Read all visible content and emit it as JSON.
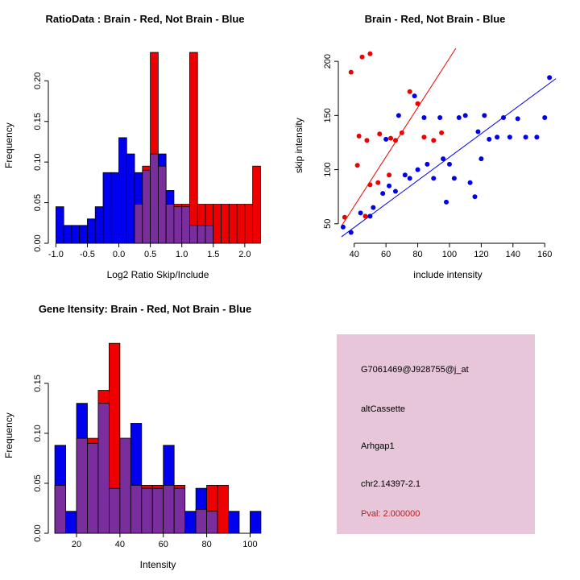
{
  "colors": {
    "red": "#EE0000",
    "blue": "#0000EE",
    "overlap": "#7A2E9D",
    "axis": "#000000",
    "info_bg": "#E6C6D8",
    "pval_text": "#B22222"
  },
  "chart_data": [
    {
      "type": "bar",
      "id": "ratio-histogram",
      "title": "RatioData : Brain - Red, Not Brain - Blue",
      "xlabel": "Log2 Ratio Skip/Include",
      "ylabel": "Frequency",
      "xlim": [
        -1.12,
        2.36
      ],
      "ylim": [
        0,
        0.24
      ],
      "xticks": [
        -1.0,
        -0.5,
        0.0,
        0.5,
        1.0,
        1.5,
        2.0
      ],
      "xtick_labels": [
        "-1.0",
        "-0.5",
        "0.0",
        "0.5",
        "1.0",
        "1.5",
        "2.0"
      ],
      "yticks": [
        0,
        0.05,
        0.1,
        0.15,
        0.2
      ],
      "ytick_labels": [
        "0.00",
        "0.05",
        "0.10",
        "0.15",
        "0.20"
      ],
      "bins_start": -1.0,
      "bin_width": 0.125,
      "series": [
        {
          "name": "Not Brain",
          "color": "blue",
          "values": [
            0.045,
            0.022,
            0.022,
            0.022,
            0.03,
            0.045,
            0.087,
            0.087,
            0.13,
            0.11,
            0.087,
            0.09,
            0.11,
            0.11,
            0.065,
            0.045,
            0.045,
            0.022,
            0.022,
            0.022,
            0,
            0,
            0,
            0,
            0,
            0
          ]
        },
        {
          "name": "Brain",
          "color": "red",
          "values": [
            0,
            0,
            0,
            0,
            0,
            0,
            0,
            0,
            0,
            0,
            0.048,
            0.095,
            0.235,
            0.095,
            0.048,
            0.048,
            0.048,
            0.235,
            0.048,
            0.048,
            0.048,
            0.048,
            0.048,
            0.048,
            0.048,
            0.095
          ]
        }
      ]
    },
    {
      "type": "scatter",
      "id": "intensity-scatter",
      "title": "Brain - Red, Not Brain - Blue",
      "xlabel": "include intensity",
      "ylabel": "skip intensity",
      "xlim": [
        30,
        168
      ],
      "ylim": [
        32,
        212
      ],
      "xticks": [
        40,
        60,
        80,
        100,
        120,
        140,
        160
      ],
      "xtick_labels": [
        "40",
        "60",
        "80",
        "100",
        "120",
        "140",
        "160"
      ],
      "yticks": [
        50,
        100,
        150,
        200
      ],
      "ytick_labels": [
        "50",
        "100",
        "150",
        "200"
      ],
      "series": [
        {
          "name": "Brain",
          "color": "red",
          "points": [
            [
              38,
              190
            ],
            [
              45,
              204
            ],
            [
              50,
              207
            ],
            [
              43,
              131
            ],
            [
              48,
              127
            ],
            [
              56,
              133
            ],
            [
              63,
              129
            ],
            [
              66,
              127
            ],
            [
              70,
              134
            ],
            [
              75,
              172
            ],
            [
              80,
              161
            ],
            [
              84,
              130
            ],
            [
              90,
              127
            ],
            [
              95,
              134
            ],
            [
              42,
              104
            ],
            [
              50,
              86
            ],
            [
              55,
              88
            ],
            [
              62,
              95
            ],
            [
              34,
              56
            ],
            [
              47,
              57
            ]
          ]
        },
        {
          "name": "Not Brain",
          "color": "blue",
          "points": [
            [
              33,
              47
            ],
            [
              38,
              42
            ],
            [
              44,
              60
            ],
            [
              50,
              57
            ],
            [
              52,
              65
            ],
            [
              58,
              78
            ],
            [
              60,
              128
            ],
            [
              62,
              85
            ],
            [
              66,
              80
            ],
            [
              68,
              150
            ],
            [
              72,
              95
            ],
            [
              75,
              92
            ],
            [
              78,
              168
            ],
            [
              80,
              100
            ],
            [
              84,
              148
            ],
            [
              86,
              105
            ],
            [
              90,
              92
            ],
            [
              94,
              148
            ],
            [
              96,
              110
            ],
            [
              100,
              105
            ],
            [
              103,
              92
            ],
            [
              106,
              148
            ],
            [
              110,
              150
            ],
            [
              113,
              88
            ],
            [
              116,
              75
            ],
            [
              118,
              135
            ],
            [
              122,
              150
            ],
            [
              125,
              128
            ],
            [
              130,
              130
            ],
            [
              134,
              148
            ],
            [
              138,
              130
            ],
            [
              143,
              147
            ],
            [
              148,
              130
            ],
            [
              155,
              130
            ],
            [
              160,
              148
            ],
            [
              163,
              185
            ],
            [
              120,
              110
            ],
            [
              98,
              70
            ]
          ]
        }
      ],
      "lines": [
        {
          "color": "red",
          "p1": [
            32,
            48
          ],
          "p2": [
            104,
            212
          ]
        },
        {
          "color": "blue",
          "p1": [
            32,
            38
          ],
          "p2": [
            167,
            184
          ]
        }
      ]
    },
    {
      "type": "bar",
      "id": "gene-intensity-histogram",
      "title": "Gene Itensity: Brain - Red, Not Brain - Blue",
      "xlabel": "Intensity",
      "ylabel": "Frequency",
      "xlim": [
        7,
        108
      ],
      "ylim": [
        0,
        0.195
      ],
      "xticks": [
        20,
        40,
        60,
        80,
        100
      ],
      "xtick_labels": [
        "20",
        "40",
        "60",
        "80",
        "100"
      ],
      "yticks": [
        0,
        0.05,
        0.1,
        0.15
      ],
      "ytick_labels": [
        "0.00",
        "0.05",
        "0.10",
        "0.15"
      ],
      "bins_start": 10,
      "bin_width": 5,
      "series": [
        {
          "name": "Not Brain",
          "color": "blue",
          "values": [
            0.088,
            0.022,
            0.13,
            0.09,
            0.13,
            0.045,
            0.095,
            0.11,
            0.045,
            0.045,
            0.088,
            0.045,
            0.022,
            0.045,
            0.022,
            0,
            0.022,
            0,
            0.022
          ]
        },
        {
          "name": "Brain",
          "color": "red",
          "values": [
            0.048,
            0,
            0.095,
            0.095,
            0.143,
            0.19,
            0.095,
            0.048,
            0.048,
            0.048,
            0.048,
            0.048,
            0,
            0.024,
            0.048,
            0.048,
            0,
            0,
            0
          ]
        }
      ]
    }
  ],
  "info_panel": {
    "lines": [
      "G7061469@J928755@j_at",
      "altCassette",
      "Arhgap1",
      "chr2.14397-2.1"
    ],
    "pval": "Pval: 2.000000"
  }
}
